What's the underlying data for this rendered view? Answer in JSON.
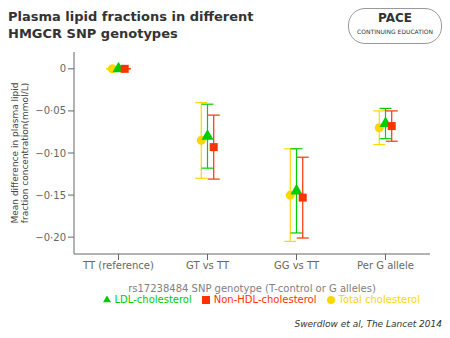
{
  "chart_data": {
    "type": "scatter",
    "title": "Plasma lipid fractions in different\nHMGCR SNP genotypes",
    "x_label": "rs17238484 SNP genotype (T-control or G alleles)",
    "y_label": "Mean difference in plasma lipid\nfraction concentration(mmol/L)",
    "categories": [
      "TT (reference)",
      "GT vs TT",
      "GG vs TT",
      "Per G allele"
    ],
    "series": [
      {
        "name": "Total cholesterol",
        "color": "#FFD700",
        "marker": "circle",
        "values": [
          0.0,
          -0.085,
          -0.15,
          -0.07
        ],
        "yerr_low": [
          0.0,
          0.045,
          0.055,
          0.02
        ],
        "yerr_high": [
          0.0,
          0.045,
          0.055,
          0.02
        ]
      },
      {
        "name": "LDL-cholesterol",
        "color": "#00CC00",
        "marker": "triangle",
        "values": [
          0.0,
          -0.08,
          -0.145,
          -0.065
        ],
        "yerr_low": [
          0.0,
          0.038,
          0.05,
          0.018
        ],
        "yerr_high": [
          0.0,
          0.038,
          0.05,
          0.018
        ]
      },
      {
        "name": "Non-HDL-cholesterol",
        "color": "#FF3300",
        "marker": "square",
        "values": [
          0.0,
          -0.093,
          -0.153,
          -0.068
        ],
        "yerr_low": [
          0.0,
          0.038,
          0.048,
          0.018
        ],
        "yerr_high": [
          0.0,
          0.038,
          0.048,
          0.018
        ]
      }
    ],
    "ylim": [
      -0.22,
      0.02
    ],
    "yticks": [
      0,
      {
        "value": -0.05,
        "label": "−0·05"
      },
      {
        "value": -0.1,
        "label": "−0·10"
      },
      {
        "value": -0.15,
        "label": "−0·15"
      },
      {
        "value": -0.2,
        "label": "−0·20"
      }
    ],
    "grid": false,
    "legend": "lower right",
    "annotations": [
      "Swerdlow et al, The Lancet 2014",
      "PACE",
      "CONTINUING EDUCATION"
    ]
  }
}
